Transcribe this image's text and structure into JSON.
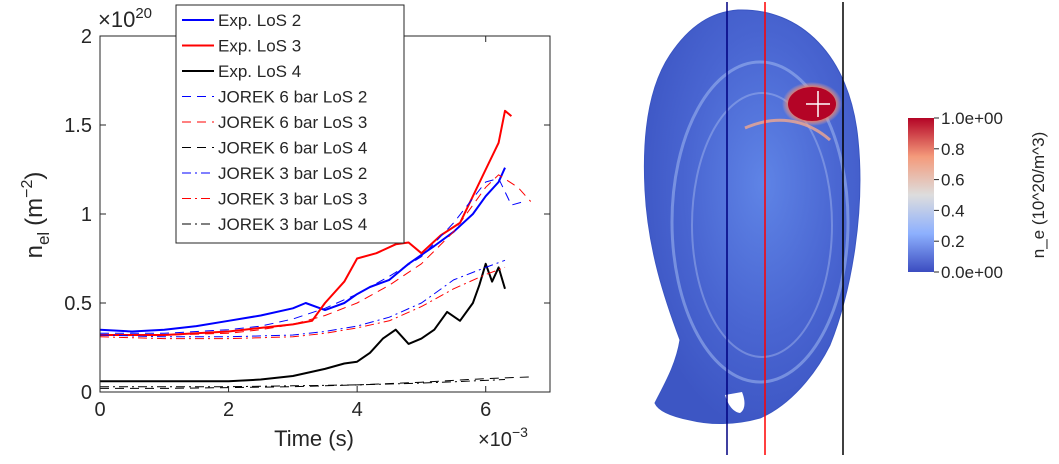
{
  "chart_data": [
    {
      "type": "line",
      "xlabel": "Time (s)",
      "ylabel_main": "n",
      "ylabel_sub": "el",
      "ylabel_unit": "(m",
      "ylabel_exp": "−2",
      "ylabel_close": ")",
      "x_multiplier_base": "×10",
      "x_multiplier_exp": "−3",
      "y_multiplier_base": "×10",
      "y_multiplier_exp": "20",
      "xlim": [
        0,
        7
      ],
      "ylim": [
        0,
        2
      ],
      "x_ticks": [
        0,
        2,
        4,
        6
      ],
      "x_tick_labels": [
        "0",
        "2",
        "4",
        "6"
      ],
      "y_ticks": [
        0,
        0.5,
        1,
        1.5,
        2
      ],
      "y_tick_labels": [
        "0",
        "0.5",
        "1",
        "1.5",
        "2"
      ],
      "legend_position": "top-left",
      "series": [
        {
          "name": "Exp. LoS 2",
          "color": "#0000ff",
          "style": "solid",
          "width": 2,
          "x": [
            0,
            0.5,
            1.0,
            1.5,
            2.0,
            2.5,
            3.0,
            3.2,
            3.5,
            3.8,
            4.0,
            4.2,
            4.5,
            4.8,
            5.0,
            5.2,
            5.5,
            5.8,
            6.0,
            6.2,
            6.3
          ],
          "y": [
            0.35,
            0.34,
            0.35,
            0.37,
            0.4,
            0.43,
            0.47,
            0.5,
            0.46,
            0.5,
            0.55,
            0.59,
            0.63,
            0.72,
            0.77,
            0.82,
            0.9,
            1.0,
            1.1,
            1.18,
            1.26
          ]
        },
        {
          "name": "Exp. LoS 3",
          "color": "#ff0000",
          "style": "solid",
          "width": 2,
          "x": [
            0,
            0.5,
            1.0,
            1.5,
            2.0,
            2.5,
            3.0,
            3.3,
            3.5,
            3.8,
            4.0,
            4.3,
            4.6,
            4.8,
            5.0,
            5.3,
            5.6,
            5.8,
            6.0,
            6.2,
            6.3,
            6.4
          ],
          "y": [
            0.32,
            0.32,
            0.32,
            0.33,
            0.34,
            0.36,
            0.38,
            0.4,
            0.5,
            0.62,
            0.75,
            0.78,
            0.83,
            0.84,
            0.78,
            0.88,
            0.95,
            1.1,
            1.25,
            1.4,
            1.58,
            1.55
          ]
        },
        {
          "name": "Exp. LoS 4",
          "color": "#000000",
          "style": "solid",
          "width": 2,
          "x": [
            0,
            1.0,
            2.0,
            2.5,
            3.0,
            3.5,
            3.8,
            4.0,
            4.2,
            4.4,
            4.6,
            4.8,
            5.0,
            5.2,
            5.4,
            5.6,
            5.8,
            5.9,
            6.0,
            6.1,
            6.2,
            6.3
          ],
          "y": [
            0.06,
            0.06,
            0.06,
            0.07,
            0.09,
            0.13,
            0.16,
            0.17,
            0.22,
            0.3,
            0.35,
            0.27,
            0.3,
            0.35,
            0.45,
            0.4,
            0.5,
            0.6,
            0.72,
            0.62,
            0.7,
            0.58
          ]
        },
        {
          "name": "JOREK 6 bar LoS 2",
          "color": "#0000ff",
          "style": "dashed",
          "width": 1,
          "x": [
            0,
            1.0,
            2.0,
            2.5,
            3.0,
            3.5,
            4.0,
            4.5,
            5.0,
            5.5,
            6.0,
            6.2,
            6.4,
            6.6
          ],
          "y": [
            0.33,
            0.33,
            0.35,
            0.37,
            0.41,
            0.47,
            0.55,
            0.65,
            0.76,
            0.95,
            1.18,
            1.2,
            1.05,
            1.07
          ]
        },
        {
          "name": "JOREK 6 bar LoS 3",
          "color": "#ff0000",
          "style": "dashed",
          "width": 1,
          "x": [
            0,
            1.0,
            2.0,
            2.5,
            3.0,
            3.5,
            4.0,
            4.5,
            5.0,
            5.5,
            6.0,
            6.2,
            6.5,
            6.7
          ],
          "y": [
            0.32,
            0.32,
            0.33,
            0.35,
            0.38,
            0.43,
            0.5,
            0.6,
            0.72,
            0.9,
            1.15,
            1.22,
            1.15,
            1.07
          ]
        },
        {
          "name": "JOREK 6 bar LoS 4",
          "color": "#000000",
          "style": "dashed",
          "width": 1,
          "x": [
            0,
            1.0,
            2.0,
            3.0,
            4.0,
            5.0,
            6.0,
            6.7
          ],
          "y": [
            0.02,
            0.02,
            0.025,
            0.03,
            0.04,
            0.055,
            0.075,
            0.085
          ]
        },
        {
          "name": "JOREK 3 bar LoS 2",
          "color": "#0000ff",
          "style": "dashdot",
          "width": 1,
          "x": [
            0,
            1.0,
            2.0,
            3.0,
            3.5,
            4.0,
            4.5,
            5.0,
            5.5,
            6.0,
            6.3
          ],
          "y": [
            0.32,
            0.31,
            0.31,
            0.32,
            0.34,
            0.37,
            0.42,
            0.5,
            0.63,
            0.7,
            0.74
          ]
        },
        {
          "name": "JOREK 3 bar LoS 3",
          "color": "#ff0000",
          "style": "dashdot",
          "width": 1,
          "x": [
            0,
            1.0,
            2.0,
            3.0,
            3.5,
            4.0,
            4.5,
            5.0,
            5.5,
            6.0,
            6.3
          ],
          "y": [
            0.31,
            0.3,
            0.3,
            0.31,
            0.33,
            0.36,
            0.4,
            0.48,
            0.58,
            0.66,
            0.7
          ]
        },
        {
          "name": "JOREK 3 bar LoS 4",
          "color": "#000000",
          "style": "dashdot",
          "width": 1,
          "x": [
            0,
            1.0,
            2.0,
            3.0,
            4.0,
            5.0,
            6.0,
            6.3
          ],
          "y": [
            0.03,
            0.03,
            0.03,
            0.035,
            0.04,
            0.05,
            0.065,
            0.07
          ]
        }
      ]
    },
    {
      "type": "heatmap",
      "colorbar_title": "n_e (10^20/m^3)",
      "colorbar_tick_labels": [
        "1.0e+00",
        "0.8",
        "0.6",
        "0.4",
        "0.2",
        "0.0e+00"
      ],
      "colorbar_range": [
        0,
        1
      ],
      "colorbar_colors": [
        "#3b4cc0",
        "#8db0fe",
        "#dddddd",
        "#f49a7b",
        "#b40426"
      ],
      "hotspot_value": 1.0,
      "lines_of_sight": [
        {
          "color": "#000080"
        },
        {
          "color": "#ff0000"
        },
        {
          "color": "#000000"
        }
      ]
    }
  ]
}
